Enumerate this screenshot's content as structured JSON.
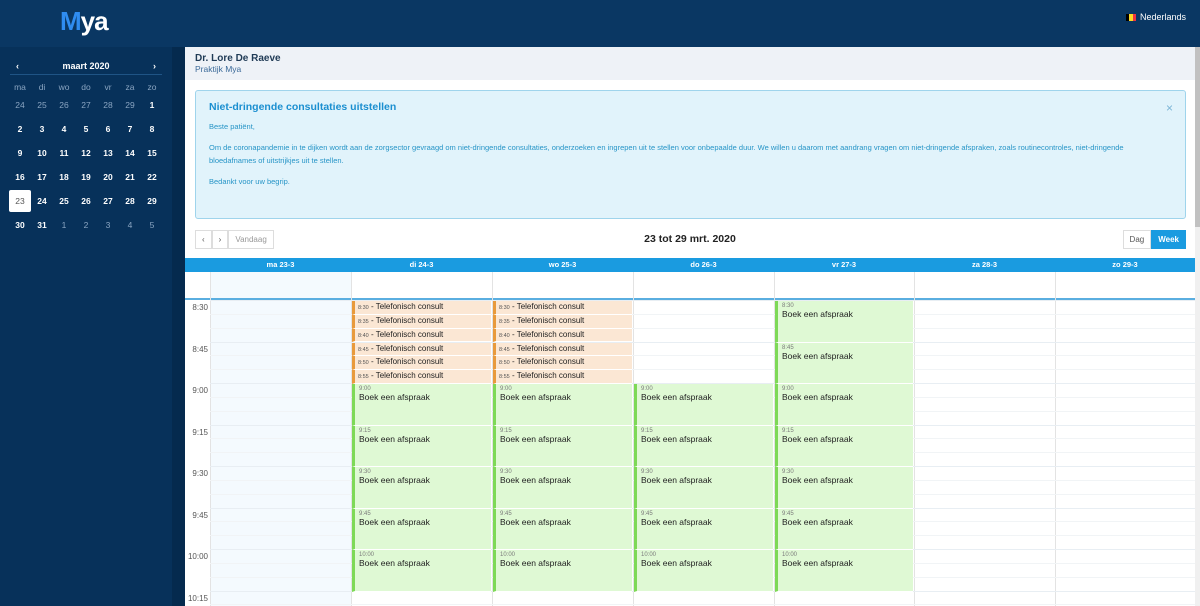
{
  "brand": {
    "logo": "Mya"
  },
  "language": {
    "label": "Nederlands",
    "flag_colors": [
      "#000000",
      "#fdda24",
      "#ef3340"
    ]
  },
  "mini_calendar": {
    "month_label": "maart 2020",
    "prev": "‹",
    "next": "›",
    "weekdays": [
      "ma",
      "di",
      "wo",
      "do",
      "vr",
      "za",
      "zo"
    ],
    "days": [
      {
        "d": "24",
        "other": true
      },
      {
        "d": "25",
        "other": true
      },
      {
        "d": "26",
        "other": true
      },
      {
        "d": "27",
        "other": true
      },
      {
        "d": "28",
        "other": true
      },
      {
        "d": "29",
        "other": true
      },
      {
        "d": "1"
      },
      {
        "d": "2"
      },
      {
        "d": "3"
      },
      {
        "d": "4"
      },
      {
        "d": "5"
      },
      {
        "d": "6"
      },
      {
        "d": "7"
      },
      {
        "d": "8"
      },
      {
        "d": "9"
      },
      {
        "d": "10"
      },
      {
        "d": "11"
      },
      {
        "d": "12"
      },
      {
        "d": "13"
      },
      {
        "d": "14"
      },
      {
        "d": "15"
      },
      {
        "d": "16"
      },
      {
        "d": "17"
      },
      {
        "d": "18"
      },
      {
        "d": "19"
      },
      {
        "d": "20"
      },
      {
        "d": "21"
      },
      {
        "d": "22"
      },
      {
        "d": "23",
        "today": true
      },
      {
        "d": "24"
      },
      {
        "d": "25"
      },
      {
        "d": "26"
      },
      {
        "d": "27"
      },
      {
        "d": "28"
      },
      {
        "d": "29"
      },
      {
        "d": "30"
      },
      {
        "d": "31"
      },
      {
        "d": "1",
        "other": true
      },
      {
        "d": "2",
        "other": true
      },
      {
        "d": "3",
        "other": true
      },
      {
        "d": "4",
        "other": true
      },
      {
        "d": "5",
        "other": true
      }
    ]
  },
  "doctor": {
    "name": "Dr. Lore De Raeve",
    "practice": "Praktijk Mya"
  },
  "alert": {
    "title": "Niet-dringende consultaties uitstellen",
    "greeting": "Beste patiënt,",
    "body": "Om de coronapandemie in te dijken wordt aan de zorgsector gevraagd om niet-dringende consultaties, onderzoeken en ingrepen uit te stellen voor onbepaalde duur.  We willen u daarom met aandrang vragen om niet-dringende afspraken, zoals routinecontroles, niet-dringende bloedafnames of uitstrijkjes uit te stellen.",
    "closing": "Bedankt voor uw begrip.",
    "close": "×"
  },
  "toolbar": {
    "prev": "‹",
    "next": "›",
    "today": "Vandaag",
    "range": "23 tot 29 mrt. 2020",
    "day": "Dag",
    "week": "Week",
    "active_view": "Week"
  },
  "columns": [
    "ma 23-3",
    "di 24-3",
    "wo 25-3",
    "do 26-3",
    "vr 27-3",
    "za 28-3",
    "zo 29-3"
  ],
  "time_labels": [
    "8:30",
    "8:45",
    "9:00",
    "9:15",
    "9:30",
    "9:45",
    "10:00",
    "10:15"
  ],
  "events": [
    {
      "day": 1,
      "start": "8:30",
      "type": "phone",
      "title": "Telefonisch consult"
    },
    {
      "day": 1,
      "start": "8:35",
      "type": "phone",
      "title": "Telefonisch consult"
    },
    {
      "day": 1,
      "start": "8:40",
      "type": "phone",
      "title": "Telefonisch consult"
    },
    {
      "day": 1,
      "start": "8:45",
      "type": "phone",
      "title": "Telefonisch consult"
    },
    {
      "day": 1,
      "start": "8:50",
      "type": "phone",
      "title": "Telefonisch consult"
    },
    {
      "day": 1,
      "start": "8:55",
      "type": "phone",
      "title": "Telefonisch consult"
    },
    {
      "day": 2,
      "start": "8:30",
      "type": "phone",
      "title": "Telefonisch consult"
    },
    {
      "day": 2,
      "start": "8:35",
      "type": "phone",
      "title": "Telefonisch consult"
    },
    {
      "day": 2,
      "start": "8:40",
      "type": "phone",
      "title": "Telefonisch consult"
    },
    {
      "day": 2,
      "start": "8:45",
      "type": "phone",
      "title": "Telefonisch consult"
    },
    {
      "day": 2,
      "start": "8:50",
      "type": "phone",
      "title": "Telefonisch consult"
    },
    {
      "day": 2,
      "start": "8:55",
      "type": "phone",
      "title": "Telefonisch consult"
    },
    {
      "day": 4,
      "start": "8:30",
      "type": "book",
      "title": "Boek een afspraak"
    },
    {
      "day": 4,
      "start": "8:45",
      "type": "book",
      "title": "Boek een afspraak"
    },
    {
      "day": 1,
      "start": "9:00",
      "type": "book",
      "title": "Boek een afspraak"
    },
    {
      "day": 1,
      "start": "9:15",
      "type": "book",
      "title": "Boek een afspraak"
    },
    {
      "day": 1,
      "start": "9:30",
      "type": "book",
      "title": "Boek een afspraak"
    },
    {
      "day": 1,
      "start": "9:45",
      "type": "book",
      "title": "Boek een afspraak"
    },
    {
      "day": 1,
      "start": "10:00",
      "type": "book",
      "title": "Boek een afspraak"
    },
    {
      "day": 2,
      "start": "9:00",
      "type": "book",
      "title": "Boek een afspraak"
    },
    {
      "day": 2,
      "start": "9:15",
      "type": "book",
      "title": "Boek een afspraak"
    },
    {
      "day": 2,
      "start": "9:30",
      "type": "book",
      "title": "Boek een afspraak"
    },
    {
      "day": 2,
      "start": "9:45",
      "type": "book",
      "title": "Boek een afspraak"
    },
    {
      "day": 2,
      "start": "10:00",
      "type": "book",
      "title": "Boek een afspraak"
    },
    {
      "day": 3,
      "start": "9:00",
      "type": "book",
      "title": "Boek een afspraak"
    },
    {
      "day": 3,
      "start": "9:15",
      "type": "book",
      "title": "Boek een afspraak"
    },
    {
      "day": 3,
      "start": "9:30",
      "type": "book",
      "title": "Boek een afspraak"
    },
    {
      "day": 3,
      "start": "9:45",
      "type": "book",
      "title": "Boek een afspraak"
    },
    {
      "day": 3,
      "start": "10:00",
      "type": "book",
      "title": "Boek een afspraak"
    },
    {
      "day": 4,
      "start": "9:00",
      "type": "book",
      "title": "Boek een afspraak"
    },
    {
      "day": 4,
      "start": "9:15",
      "type": "book",
      "title": "Boek een afspraak"
    },
    {
      "day": 4,
      "start": "9:30",
      "type": "book",
      "title": "Boek een afspraak"
    },
    {
      "day": 4,
      "start": "9:45",
      "type": "book",
      "title": "Boek een afspraak"
    },
    {
      "day": 4,
      "start": "10:00",
      "type": "book",
      "title": "Boek een afspraak"
    }
  ]
}
